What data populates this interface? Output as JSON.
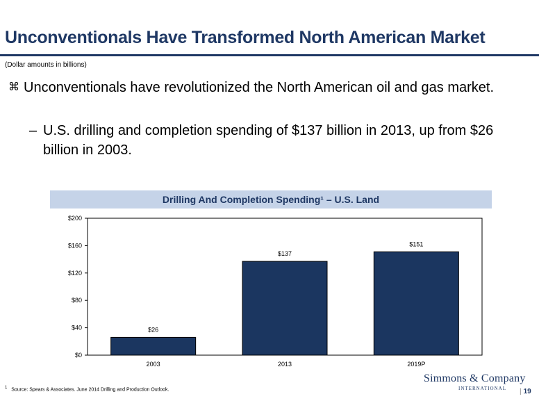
{
  "slide": {
    "title": "Unconventionals Have Transformed North American Market",
    "subtitle": "(Dollar amounts in billions)",
    "bullet": "Unconventionals have revolutionized the North American oil and gas market.",
    "sub_bullet": "U.S. drilling and completion spending of $137 billion in 2013, up from $26 billion in 2003.",
    "bullet_marker": "⌘",
    "sub_marker": "–",
    "footnote_mark": "1",
    "footnote": "Source: Spears & Associates. June 2014 Drilling and Production Outlook.",
    "logo_main": "Simmons & Company",
    "logo_sub": "INTERNATIONAL",
    "page_number": "19"
  },
  "chart_data": {
    "type": "bar",
    "title": "Drilling And Completion Spending¹ – U.S. Land",
    "categories": [
      "2003",
      "2013",
      "2019P"
    ],
    "values": [
      26,
      137,
      151
    ],
    "value_labels": [
      "$26",
      "$137",
      "$151"
    ],
    "yticks": [
      0,
      40,
      80,
      120,
      160,
      200
    ],
    "ytick_labels": [
      "$0",
      "$40",
      "$80",
      "$120",
      "$160",
      "$200"
    ],
    "ylim": [
      0,
      200
    ],
    "bar_color": "#1b3660",
    "grid": false
  }
}
